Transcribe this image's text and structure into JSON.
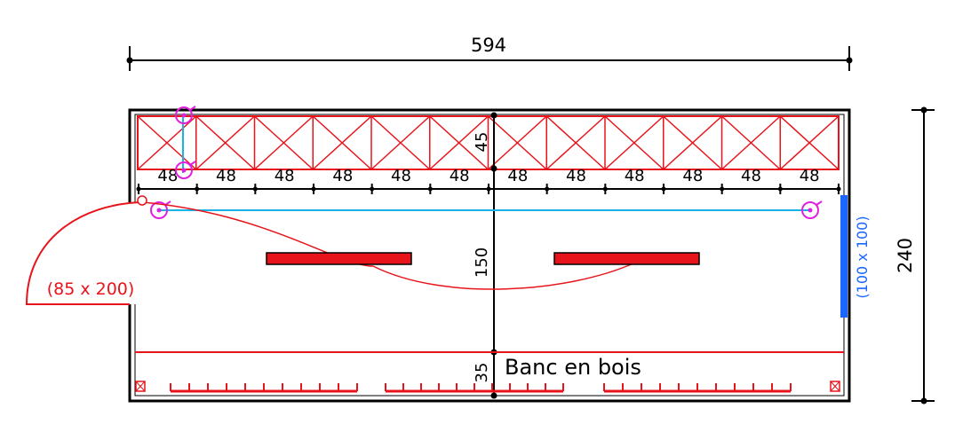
{
  "dimensions": {
    "overall_width": "594",
    "overall_depth": "240",
    "rack_depth": "45",
    "middle_depth": "150",
    "bench_depth": "35"
  },
  "rack_bay_labels": [
    "48",
    "48",
    "48",
    "48",
    "48",
    "48",
    "48",
    "48",
    "48",
    "48",
    "48",
    "48"
  ],
  "door_label": "(85 x 200)",
  "window_label": "(100 x 100)",
  "bench_label": "Banc en bois",
  "colors": {
    "wall": "#000000",
    "rack": "#e8141b",
    "pipe": "#1ab3e6",
    "window": "#1a66ff",
    "fixture": "#e020e0"
  }
}
